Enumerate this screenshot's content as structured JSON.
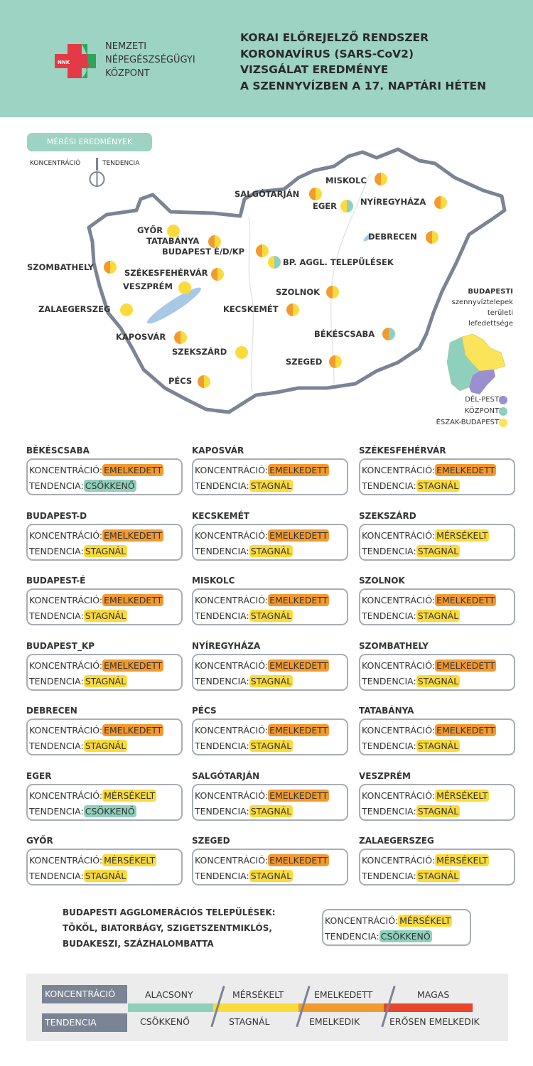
{
  "header": {
    "org_lines": [
      "NEMZETI",
      "NÉPEGÉSZSÉGÜGYI",
      "KÖZPONT"
    ],
    "logo_text": "NNK",
    "title_lines": [
      "KORAI ELŐREJELZŐ RENDSZER",
      "KORONAVÍRUS (SARS-CoV2)",
      "VIZSGÁLAT EREDMÉNYE",
      "A SZENNYVÍZBEN A 17. NAPTÁRI HÉTEN"
    ]
  },
  "map": {
    "section_label": "MÉRÉSI EREDMÉNYEK",
    "key_left": "KONCENTRÁCIÓ",
    "key_right": "TENDENCIA",
    "cities": [
      {
        "name": "MISKOLC",
        "c": "EMELKEDETT",
        "t": "STAGNÁL"
      },
      {
        "name": "SALGÓTARJÁN",
        "c": "EMELKEDETT",
        "t": "STAGNÁL"
      },
      {
        "name": "EGER",
        "c": "MÉRSÉKELT",
        "t": "CSÖKKENŐ"
      },
      {
        "name": "NYÍREGYHÁZA",
        "c": "EMELKEDETT",
        "t": "STAGNÁL"
      },
      {
        "name": "DEBRECEN",
        "c": "EMELKEDETT",
        "t": "STAGNÁL"
      },
      {
        "name": "GYŐR",
        "c": "MÉRSÉKELT",
        "t": "STAGNÁL"
      },
      {
        "name": "TATABÁNYA",
        "c": "EMELKEDETT",
        "t": "STAGNÁL"
      },
      {
        "name": "BUDAPEST É/D/KP",
        "c": "EMELKEDETT",
        "t": "STAGNÁL"
      },
      {
        "name": "BP. AGGL. TELEPÜLÉSEK",
        "c": "MÉRSÉKELT",
        "t": "CSÖKKENŐ"
      },
      {
        "name": "SZOMBATHELY",
        "c": "EMELKEDETT",
        "t": "STAGNÁL"
      },
      {
        "name": "SZÉKESFEHÉRVÁR",
        "c": "EMELKEDETT",
        "t": "STAGNÁL"
      },
      {
        "name": "VESZPRÉM",
        "c": "MÉRSÉKELT",
        "t": "STAGNÁL"
      },
      {
        "name": "SZOLNOK",
        "c": "EMELKEDETT",
        "t": "STAGNÁL"
      },
      {
        "name": "ZALAEGERSZEG",
        "c": "MÉRSÉKELT",
        "t": "STAGNÁL"
      },
      {
        "name": "KECSKEMÉT",
        "c": "EMELKEDETT",
        "t": "STAGNÁL"
      },
      {
        "name": "BÉKÉSCSABA",
        "c": "EMELKEDETT",
        "t": "CSÖKKENŐ"
      },
      {
        "name": "KAPOSVÁR",
        "c": "EMELKEDETT",
        "t": "STAGNÁL"
      },
      {
        "name": "SZEKSZÁRD",
        "c": "MÉRSÉKELT",
        "t": "STAGNÁL"
      },
      {
        "name": "SZEGED",
        "c": "EMELKEDETT",
        "t": "STAGNÁL"
      },
      {
        "name": "PÉCS",
        "c": "EMELKEDETT",
        "t": "STAGNÁL"
      }
    ],
    "budapest_caption": [
      "BUDAPESTI",
      "szennyvíztelepek",
      "területi",
      "lefedettsége"
    ],
    "budapest_legend": [
      {
        "label": "DÉL-PESTI",
        "color": "#9b8fd0"
      },
      {
        "label": "KÖZPONTI",
        "color": "#8fd0bd"
      },
      {
        "label": "ÉSZAK-BUDAPESTI",
        "color": "#fbe35a"
      }
    ]
  },
  "cards_labels": {
    "c": "KONCENTRÁCIÓ:",
    "t": "TENDENCIA:"
  },
  "cards": [
    {
      "name": "BÉKÉSCSABA",
      "c": "EMELKEDETT",
      "t": "CSÖKKENŐ"
    },
    {
      "name": "KAPOSVÁR",
      "c": "EMELKEDETT",
      "t": "STAGNÁL"
    },
    {
      "name": "SZÉKESFEHÉRVÁR",
      "c": "EMELKEDETT",
      "t": "STAGNÁL"
    },
    {
      "name": "BUDAPEST-D",
      "c": "EMELKEDETT",
      "t": "STAGNÁL"
    },
    {
      "name": "KECSKEMÉT",
      "c": "EMELKEDETT",
      "t": "STAGNÁL"
    },
    {
      "name": "SZEKSZÁRD",
      "c": "MÉRSÉKELT",
      "t": "STAGNÁL"
    },
    {
      "name": "BUDAPEST-É",
      "c": "EMELKEDETT",
      "t": "STAGNÁL"
    },
    {
      "name": "MISKOLC",
      "c": "EMELKEDETT",
      "t": "STAGNÁL"
    },
    {
      "name": "SZOLNOK",
      "c": "EMELKEDETT",
      "t": "STAGNÁL"
    },
    {
      "name": "BUDAPEST_KP",
      "c": "EMELKEDETT",
      "t": "STAGNÁL"
    },
    {
      "name": "NYÍREGYHÁZA",
      "c": "EMELKEDETT",
      "t": "STAGNÁL"
    },
    {
      "name": "SZOMBATHELY",
      "c": "EMELKEDETT",
      "t": "STAGNÁL"
    },
    {
      "name": "DEBRECEN",
      "c": "EMELKEDETT",
      "t": "STAGNÁL"
    },
    {
      "name": "PÉCS",
      "c": "EMELKEDETT",
      "t": "STAGNÁL"
    },
    {
      "name": "TATABÁNYA",
      "c": "EMELKEDETT",
      "t": "STAGNÁL"
    },
    {
      "name": "EGER",
      "c": "MÉRSÉKELT",
      "t": "CSÖKKENŐ"
    },
    {
      "name": "SALGÓTARJÁN",
      "c": "EMELKEDETT",
      "t": "STAGNÁL"
    },
    {
      "name": "VESZPRÉM",
      "c": "MÉRSÉKELT",
      "t": "STAGNÁL"
    },
    {
      "name": "GYŐR",
      "c": "MÉRSÉKELT",
      "t": "STAGNÁL"
    },
    {
      "name": "SZEGED",
      "c": "EMELKEDETT",
      "t": "STAGNÁL"
    },
    {
      "name": "ZALAEGERSZEG",
      "c": "MÉRSÉKELT",
      "t": "STAGNÁL"
    }
  ],
  "agglomeration": {
    "lines": [
      "BUDAPESTI AGGLOMERÁCIÓS TELEPÜLÉSEK:",
      "TÖKÖL, BIATORBÁGY, SZIGETSZENTMIKLÓS,",
      "BUDAKESZI, SZÁZHALOMBATTA"
    ],
    "c": "MÉRSÉKELT",
    "t": "CSÖKKENŐ"
  },
  "legend": {
    "row1_label": "KONCENTRÁCIÓ",
    "row2_label": "TENDENCIA",
    "concentration": [
      "ALACSONY",
      "MÉRSÉKELT",
      "EMELKEDETT",
      "MAGAS"
    ],
    "tendency": [
      "CSÖKKENŐ",
      "STAGNÁL",
      "EMELKEDIK",
      "ERŐSEN EMELKEDIK"
    ],
    "colors": [
      "#8fd0bd",
      "#fbdb3c",
      "#f39a2e",
      "#e8452a"
    ]
  },
  "level_colors": {
    "ALACSONY": "#8fd0bd",
    "MÉRSÉKELT": "#fbdb3c",
    "EMELKEDETT": "#f39a2e",
    "MAGAS": "#e8452a",
    "CSÖKKENŐ": "#8fd0bd",
    "STAGNÁL": "#fbdb3c",
    "EMELKEDIK": "#f39a2e",
    "ERŐSEN EMELKEDIK": "#e8452a"
  }
}
